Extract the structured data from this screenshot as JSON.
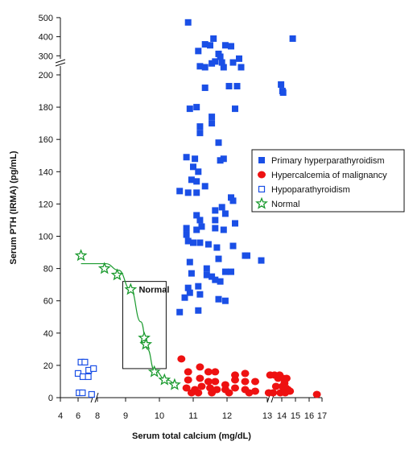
{
  "chart_data": {
    "type": "scatter",
    "xlabel": "Serum total calcium (mg/dL)",
    "ylabel": "Serum PTH (IRMA) (pg/mL)",
    "x_ticks": [
      "4",
      "6",
      "8",
      "9",
      "10",
      "11",
      "12",
      "13",
      "14",
      "15",
      "16",
      "17"
    ],
    "y_ticks_upper": [
      "500",
      "400",
      "300",
      "200"
    ],
    "y_ticks_lower": [
      "180",
      "160",
      "140",
      "120",
      "100",
      "80",
      "60",
      "40",
      "20",
      "0"
    ],
    "normal_box": {
      "label": "Normal",
      "x_range": [
        8.9,
        10.2
      ],
      "y_range": [
        18,
        72
      ]
    },
    "legend": {
      "placement": "right"
    },
    "colors": {
      "blue": "#1a4fe6",
      "red": "#ee1111",
      "green": "#1a9a2e"
    },
    "series": [
      {
        "name": "Primary hyperparathyroidism",
        "marker": "filled-square",
        "color": "#1a4fe6",
        "points": [
          [
            10.85,
            475
          ],
          [
            11.6,
            390
          ],
          [
            11.95,
            355
          ],
          [
            12.1,
            350
          ],
          [
            11.35,
            360
          ],
          [
            11.5,
            355
          ],
          [
            11.15,
            325
          ],
          [
            11.75,
            310
          ],
          [
            11.8,
            295
          ],
          [
            12.3,
            285
          ],
          [
            11.65,
            270
          ],
          [
            11.85,
            265
          ],
          [
            12.15,
            265
          ],
          [
            11.55,
            260
          ],
          [
            11.2,
            245
          ],
          [
            11.35,
            240
          ],
          [
            11.9,
            240
          ],
          [
            12.35,
            240
          ],
          [
            14.8,
            390
          ],
          [
            11.35,
            192
          ],
          [
            12.05,
            193
          ],
          [
            12.25,
            193
          ],
          [
            13.95,
            194
          ],
          [
            14.05,
            190
          ],
          [
            14.1,
            189
          ],
          [
            10.9,
            179
          ],
          [
            11.1,
            180
          ],
          [
            12.2,
            179
          ],
          [
            11.55,
            174
          ],
          [
            11.55,
            170
          ],
          [
            11.2,
            168
          ],
          [
            11.2,
            164
          ],
          [
            11.75,
            158
          ],
          [
            10.8,
            149
          ],
          [
            11.05,
            148
          ],
          [
            11.8,
            147
          ],
          [
            11.15,
            140
          ],
          [
            11.0,
            143
          ],
          [
            11.9,
            148
          ],
          [
            10.95,
            135
          ],
          [
            11.1,
            134
          ],
          [
            11.35,
            131
          ],
          [
            10.6,
            128
          ],
          [
            10.85,
            127
          ],
          [
            11.1,
            127
          ],
          [
            12.1,
            124
          ],
          [
            12.15,
            122
          ],
          [
            11.85,
            118
          ],
          [
            11.65,
            116
          ],
          [
            11.1,
            113
          ],
          [
            11.2,
            110
          ],
          [
            11.65,
            110
          ],
          [
            11.95,
            114
          ],
          [
            12.2,
            108
          ],
          [
            10.8,
            105
          ],
          [
            11.1,
            104
          ],
          [
            11.25,
            106
          ],
          [
            11.65,
            105
          ],
          [
            11.9,
            104
          ],
          [
            10.8,
            101
          ],
          [
            10.85,
            97
          ],
          [
            11.0,
            96
          ],
          [
            11.2,
            96
          ],
          [
            11.45,
            95
          ],
          [
            11.7,
            93
          ],
          [
            12.15,
            94
          ],
          [
            12.45,
            88
          ],
          [
            12.5,
            88
          ],
          [
            12.85,
            85
          ],
          [
            11.75,
            86
          ],
          [
            10.9,
            84
          ],
          [
            11.4,
            80
          ],
          [
            11.95,
            78
          ],
          [
            10.95,
            77
          ],
          [
            11.4,
            76
          ],
          [
            11.65,
            73
          ],
          [
            11.55,
            75
          ],
          [
            11.8,
            72
          ],
          [
            12.1,
            78
          ],
          [
            10.85,
            68
          ],
          [
            11.15,
            69
          ],
          [
            10.9,
            65
          ],
          [
            11.2,
            64
          ],
          [
            10.75,
            62
          ],
          [
            11.75,
            61
          ],
          [
            11.95,
            60
          ],
          [
            11.15,
            54
          ],
          [
            10.6,
            53
          ]
        ]
      },
      {
        "name": "Hypercalcemia of malignancy",
        "marker": "filled-circle",
        "color": "#ee1111",
        "points": [
          [
            10.65,
            24
          ],
          [
            11.2,
            19
          ],
          [
            11.45,
            16
          ],
          [
            11.65,
            16
          ],
          [
            12.2,
            14
          ],
          [
            12.45,
            15
          ],
          [
            10.85,
            16
          ],
          [
            10.85,
            11
          ],
          [
            11.2,
            12
          ],
          [
            11.45,
            10
          ],
          [
            11.65,
            10
          ],
          [
            11.95,
            8
          ],
          [
            12.2,
            11
          ],
          [
            12.45,
            10
          ],
          [
            12.7,
            10
          ],
          [
            10.8,
            6
          ],
          [
            11.05,
            5
          ],
          [
            11.25,
            7
          ],
          [
            11.5,
            6
          ],
          [
            11.7,
            5
          ],
          [
            11.95,
            5
          ],
          [
            12.2,
            6
          ],
          [
            12.45,
            5
          ],
          [
            12.7,
            4
          ],
          [
            10.95,
            3
          ],
          [
            11.15,
            3
          ],
          [
            11.55,
            3
          ],
          [
            12.05,
            3
          ],
          [
            12.55,
            3
          ],
          [
            13.1,
            3
          ],
          [
            13.2,
            14
          ],
          [
            13.5,
            14
          ],
          [
            13.75,
            12
          ],
          [
            13.85,
            14
          ],
          [
            14.1,
            12
          ],
          [
            14.35,
            12
          ],
          [
            14.2,
            9
          ],
          [
            13.6,
            7
          ],
          [
            14.05,
            7
          ],
          [
            14.3,
            6
          ],
          [
            14.45,
            5
          ],
          [
            14.6,
            4
          ],
          [
            13.4,
            3
          ],
          [
            13.9,
            3
          ],
          [
            14.25,
            3
          ],
          [
            16.6,
            2
          ]
        ]
      },
      {
        "name": "Hypoparathyroidism",
        "marker": "open-square",
        "color": "#1a4fe6",
        "points": [
          [
            6.3,
            22
          ],
          [
            6.7,
            22
          ],
          [
            7.1,
            17
          ],
          [
            7.6,
            18
          ],
          [
            6.0,
            15
          ],
          [
            6.5,
            13
          ],
          [
            7.05,
            13
          ],
          [
            6.1,
            3
          ],
          [
            6.45,
            3
          ],
          [
            7.4,
            2
          ]
        ]
      },
      {
        "name": "Normal",
        "marker": "open-star",
        "color": "#1a9a2e",
        "points": [
          [
            6.3,
            88
          ],
          [
            8.25,
            80
          ],
          [
            8.7,
            76
          ],
          [
            9.15,
            67
          ],
          [
            9.55,
            37
          ],
          [
            9.6,
            33
          ],
          [
            9.85,
            16
          ],
          [
            10.15,
            11
          ],
          [
            10.45,
            8
          ]
        ]
      }
    ]
  }
}
